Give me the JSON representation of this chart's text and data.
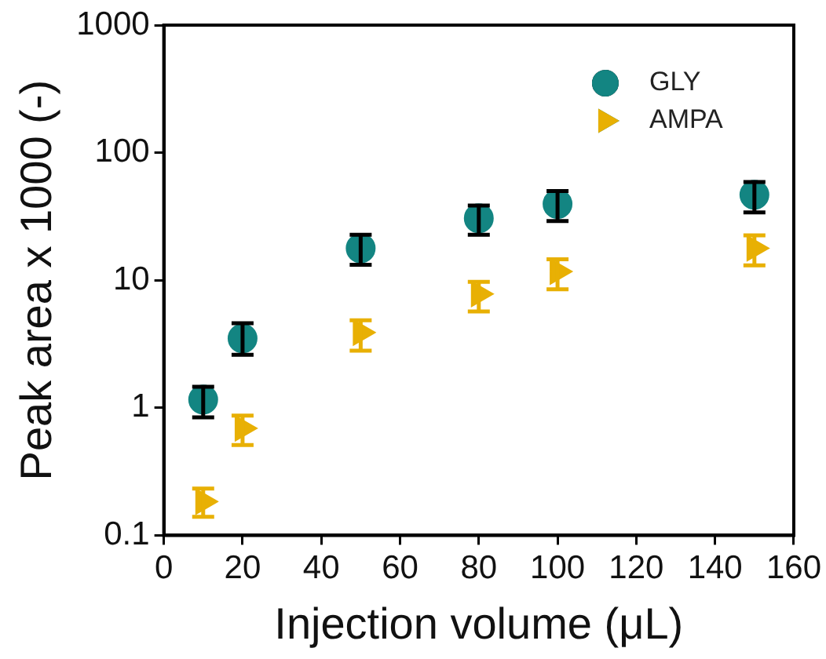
{
  "chart_data": {
    "type": "scatter",
    "xlabel": "Injection volume (μL)",
    "ylabel": "Peak area x 1000 (-)",
    "xlim": [
      0,
      160
    ],
    "xticks": [
      0,
      20,
      40,
      60,
      80,
      100,
      120,
      140,
      160
    ],
    "ylim": [
      0.1,
      1000
    ],
    "yticks": [
      0.1,
      1,
      10,
      100,
      1000
    ],
    "log": "y",
    "grid": false,
    "legend": "top right",
    "series": [
      {
        "name": "GLY",
        "color": "#138582",
        "marker": "circle",
        "x": [
          10,
          20,
          50,
          80,
          100,
          150
        ],
        "values": [
          1.16,
          3.5,
          17.8,
          30.6,
          39.6,
          46.7
        ],
        "errors": [
          [
            0.84,
            1.46
          ],
          [
            2.6,
            4.6
          ],
          [
            13.2,
            22.7
          ],
          [
            22.7,
            38.5
          ],
          [
            29.1,
            50
          ],
          [
            34,
            58.9
          ]
        ]
      },
      {
        "name": "AMPA",
        "color": "#e8b004",
        "marker": "triangle",
        "x": [
          10,
          20,
          50,
          80,
          100,
          150
        ],
        "values": [
          0.184,
          0.69,
          3.89,
          7.8,
          11.7,
          17.8
        ],
        "errors": [
          [
            0.14,
            0.233
          ],
          [
            0.51,
            0.87
          ],
          [
            2.8,
            4.85
          ],
          [
            5.7,
            9.7
          ],
          [
            8.5,
            14.6
          ],
          [
            13.1,
            22.5
          ]
        ]
      }
    ]
  }
}
